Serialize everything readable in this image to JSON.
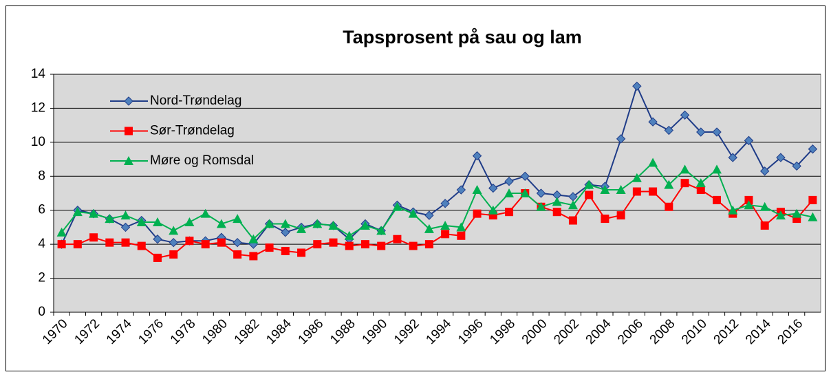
{
  "chart_data": {
    "type": "line",
    "title": "Tapsprosent på sau og lam",
    "categories": [
      "1970",
      null,
      "1972",
      null,
      "1974",
      null,
      "1976",
      null,
      "1978",
      null,
      "1980",
      null,
      "1982",
      null,
      "1984",
      null,
      "1986",
      null,
      "1988",
      null,
      "1990",
      null,
      "1992",
      null,
      "1994",
      null,
      "1996",
      null,
      "1998",
      null,
      "2000",
      null,
      "2002",
      null,
      "2004",
      null,
      "2006",
      null,
      "2008",
      null,
      "2010",
      null,
      "2012",
      null,
      "2014",
      null,
      "2016",
      null
    ],
    "series": [
      {
        "name": "Nord-Trøndelag",
        "color": "#4f81bd",
        "line_color": "#1f3c88",
        "marker": "diamond",
        "values": [
          4.0,
          6.0,
          5.8,
          5.5,
          5.0,
          5.4,
          4.3,
          4.1,
          4.2,
          4.2,
          4.4,
          4.1,
          4.0,
          5.2,
          4.7,
          5.0,
          5.2,
          5.1,
          4.3,
          5.2,
          4.8,
          6.3,
          5.9,
          5.7,
          6.4,
          7.2,
          9.2,
          7.3,
          7.7,
          8.0,
          7.0,
          6.9,
          6.8,
          7.5,
          7.4,
          10.2,
          13.3,
          11.2,
          10.7,
          11.6,
          10.6,
          10.6,
          9.1,
          10.1,
          8.3,
          9.1,
          8.6,
          9.6
        ]
      },
      {
        "name": "Sør-Trøndelag",
        "color": "#ff0000",
        "line_color": "#ff0000",
        "marker": "square",
        "values": [
          4.0,
          4.0,
          4.4,
          4.1,
          4.1,
          3.9,
          3.2,
          3.4,
          4.2,
          4.0,
          4.1,
          3.4,
          3.3,
          3.8,
          3.6,
          3.5,
          4.0,
          4.1,
          3.9,
          4.0,
          3.9,
          4.3,
          3.9,
          4.0,
          4.6,
          4.5,
          5.8,
          5.7,
          5.9,
          7.0,
          6.2,
          5.9,
          5.4,
          6.9,
          5.5,
          5.7,
          7.1,
          7.1,
          6.2,
          7.6,
          7.2,
          6.6,
          5.8,
          6.6,
          5.1,
          5.9,
          5.5,
          6.6
        ]
      },
      {
        "name": "Møre og Romsdal",
        "color": "#00b050",
        "line_color": "#00b050",
        "marker": "triangle",
        "values": [
          4.7,
          5.9,
          5.8,
          5.5,
          5.7,
          5.3,
          5.3,
          4.8,
          5.3,
          5.8,
          5.2,
          5.5,
          4.3,
          5.2,
          5.2,
          4.9,
          5.2,
          5.1,
          4.5,
          5.1,
          4.8,
          6.2,
          5.8,
          4.9,
          5.1,
          5.0,
          7.2,
          6.0,
          7.0,
          7.0,
          6.2,
          6.5,
          6.3,
          7.5,
          7.2,
          7.2,
          7.9,
          8.8,
          7.5,
          8.4,
          7.6,
          8.4,
          6.0,
          6.3,
          6.2,
          5.7,
          5.8,
          5.6
        ]
      }
    ],
    "ylim": [
      0,
      14
    ],
    "yticks": [
      0,
      2,
      4,
      6,
      8,
      10,
      12,
      14
    ],
    "grid": true,
    "legend": "upper left",
    "plot_background": "#d9d9d9"
  }
}
